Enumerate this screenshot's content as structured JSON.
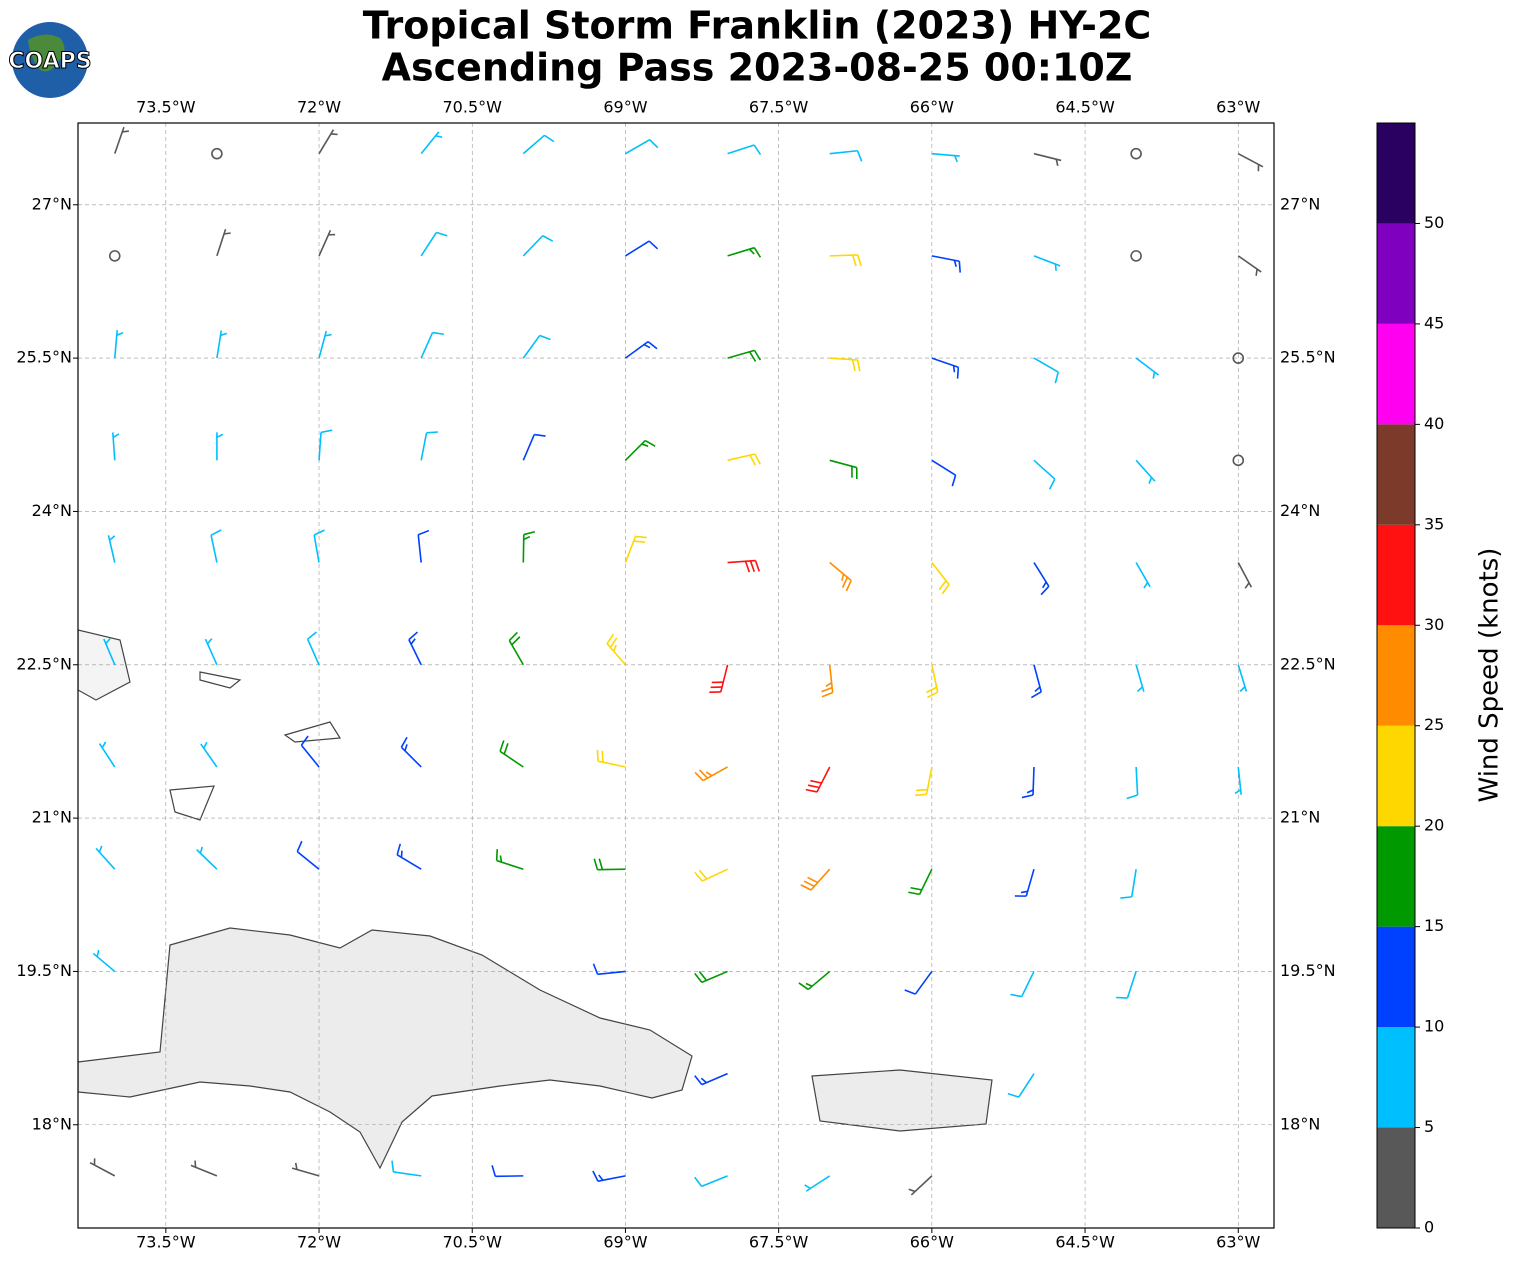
{
  "title": [
    "Tropical Storm Franklin (2023) HY-2C",
    "Ascending Pass 2023-08-25 00:10Z"
  ],
  "logo": "COAPS",
  "map": {
    "lon_range": [
      -74.36,
      -62.65
    ],
    "lat_range": [
      16.99,
      27.8
    ],
    "grid": true,
    "lon_ticks": [
      {
        "value": -73.5,
        "label": "73.5°W"
      },
      {
        "value": -72,
        "label": "72°W"
      },
      {
        "value": -70.5,
        "label": "70.5°W"
      },
      {
        "value": -69,
        "label": "69°W"
      },
      {
        "value": -67.5,
        "label": "67.5°W"
      },
      {
        "value": -66,
        "label": "66°W"
      },
      {
        "value": -64.5,
        "label": "64.5°W"
      },
      {
        "value": -63,
        "label": "63°W"
      }
    ],
    "lat_ticks": [
      {
        "value": 27,
        "label": "27°N"
      },
      {
        "value": 25.5,
        "label": "25.5°N"
      },
      {
        "value": 24,
        "label": "24°N"
      },
      {
        "value": 22.5,
        "label": "22.5°N"
      },
      {
        "value": 21,
        "label": "21°N"
      },
      {
        "value": 19.5,
        "label": "19.5°N"
      },
      {
        "value": 18,
        "label": "18°N"
      }
    ]
  },
  "colorbar": {
    "label": "Wind Speed (knots)",
    "levels": [
      0,
      5,
      10,
      15,
      20,
      25,
      30,
      35,
      40,
      45,
      50,
      55
    ],
    "colors": [
      "#585858",
      "#00bfff",
      "#0040ff",
      "#009900",
      "#ffd700",
      "#ff8c00",
      "#ff1111",
      "#7b3a2a",
      "#ff00f0",
      "#8000c0",
      "#2a0060"
    ],
    "ticks": [
      0,
      5,
      10,
      15,
      20,
      25,
      30,
      35,
      40,
      45,
      50
    ]
  },
  "barbs": [
    {
      "lon": -74,
      "lat": 27.5,
      "speed": 3,
      "dir": 19
    },
    {
      "lon": -73,
      "lat": 27.5,
      "speed": 1,
      "dir": 24
    },
    {
      "lon": -72,
      "lat": 27.5,
      "speed": 3,
      "dir": 31
    },
    {
      "lon": -71,
      "lat": 27.5,
      "speed": 6,
      "dir": 39
    },
    {
      "lon": -70,
      "lat": 27.5,
      "speed": 8,
      "dir": 49
    },
    {
      "lon": -69,
      "lat": 27.5,
      "speed": 8,
      "dir": 60
    },
    {
      "lon": -68,
      "lat": 27.5,
      "speed": 8,
      "dir": 72
    },
    {
      "lon": -67,
      "lat": 27.5,
      "speed": 8,
      "dir": 84
    },
    {
      "lon": -66,
      "lat": 27.5,
      "speed": 7,
      "dir": 95
    },
    {
      "lon": -65,
      "lat": 27.5,
      "speed": 3,
      "dir": 104
    },
    {
      "lon": -64,
      "lat": 27.5,
      "speed": 1,
      "dir": 112
    },
    {
      "lon": -63,
      "lat": 27.5,
      "speed": 3,
      "dir": 118
    },
    {
      "lon": -74,
      "lat": 26.5,
      "speed": 1,
      "dir": 12
    },
    {
      "lon": -73,
      "lat": 26.5,
      "speed": 3,
      "dir": 18
    },
    {
      "lon": -72,
      "lat": 26.5,
      "speed": 4,
      "dir": 24
    },
    {
      "lon": -71,
      "lat": 26.5,
      "speed": 8,
      "dir": 33
    },
    {
      "lon": -70,
      "lat": 26.5,
      "speed": 9,
      "dir": 44
    },
    {
      "lon": -69,
      "lat": 26.5,
      "speed": 12,
      "dir": 58
    },
    {
      "lon": -68,
      "lat": 26.5,
      "speed": 16,
      "dir": 73
    },
    {
      "lon": -67,
      "lat": 26.5,
      "speed": 22,
      "dir": 88
    },
    {
      "lon": -66,
      "lat": 26.5,
      "speed": 13,
      "dir": 101
    },
    {
      "lon": -65,
      "lat": 26.5,
      "speed": 7,
      "dir": 111
    },
    {
      "lon": -64,
      "lat": 26.5,
      "speed": 1,
      "dir": 119
    },
    {
      "lon": -63,
      "lat": 26.5,
      "speed": 3,
      "dir": 125
    },
    {
      "lon": -74,
      "lat": 25.5,
      "speed": 7,
      "dir": 5
    },
    {
      "lon": -73,
      "lat": 25.5,
      "speed": 7,
      "dir": 9
    },
    {
      "lon": -72,
      "lat": 25.5,
      "speed": 7,
      "dir": 15
    },
    {
      "lon": -71,
      "lat": 25.5,
      "speed": 8,
      "dir": 24
    },
    {
      "lon": -70,
      "lat": 25.5,
      "speed": 9,
      "dir": 36
    },
    {
      "lon": -69,
      "lat": 25.5,
      "speed": 13,
      "dir": 54
    },
    {
      "lon": -68,
      "lat": 25.5,
      "speed": 18,
      "dir": 74
    },
    {
      "lon": -67,
      "lat": 25.5,
      "speed": 22,
      "dir": 94
    },
    {
      "lon": -66,
      "lat": 25.5,
      "speed": 13,
      "dir": 109
    },
    {
      "lon": -65,
      "lat": 25.5,
      "speed": 8,
      "dir": 120
    },
    {
      "lon": -64,
      "lat": 25.5,
      "speed": 6,
      "dir": 127
    },
    {
      "lon": -63,
      "lat": 25.5,
      "speed": 1,
      "dir": 133
    },
    {
      "lon": -74,
      "lat": 24.5,
      "speed": 7,
      "dir": 356
    },
    {
      "lon": -73,
      "lat": 24.5,
      "speed": 7,
      "dir": 0
    },
    {
      "lon": -72,
      "lat": 24.5,
      "speed": 8,
      "dir": 4
    },
    {
      "lon": -71,
      "lat": 24.5,
      "speed": 9,
      "dir": 11
    },
    {
      "lon": -70,
      "lat": 24.5,
      "speed": 12,
      "dir": 23
    },
    {
      "lon": -69,
      "lat": 24.5,
      "speed": 16,
      "dir": 45
    },
    {
      "lon": -68,
      "lat": 24.5,
      "speed": 20,
      "dir": 77
    },
    {
      "lon": -67,
      "lat": 24.5,
      "speed": 18,
      "dir": 105
    },
    {
      "lon": -66,
      "lat": 24.5,
      "speed": 12,
      "dir": 122
    },
    {
      "lon": -65,
      "lat": 24.5,
      "speed": 9,
      "dir": 132
    },
    {
      "lon": -64,
      "lat": 24.5,
      "speed": 6,
      "dir": 138
    },
    {
      "lon": -63,
      "lat": 24.5,
      "speed": 1,
      "dir": 142
    },
    {
      "lon": -74,
      "lat": 23.5,
      "speed": 7,
      "dir": 347
    },
    {
      "lon": -73,
      "lat": 23.5,
      "speed": 8,
      "dir": 348
    },
    {
      "lon": -72,
      "lat": 23.5,
      "speed": 9,
      "dir": 350
    },
    {
      "lon": -71,
      "lat": 23.5,
      "speed": 12,
      "dir": 354
    },
    {
      "lon": -70,
      "lat": 23.5,
      "speed": 15,
      "dir": 1
    },
    {
      "lon": -69,
      "lat": 23.5,
      "speed": 20,
      "dir": 21
    },
    {
      "lon": -68,
      "lat": 23.5,
      "speed": 30,
      "dir": 86
    },
    {
      "lon": -67,
      "lat": 23.5,
      "speed": 26,
      "dir": 130
    },
    {
      "lon": -66,
      "lat": 23.5,
      "speed": 20,
      "dir": 142
    },
    {
      "lon": -65,
      "lat": 23.5,
      "speed": 13,
      "dir": 148
    },
    {
      "lon": -64,
      "lat": 23.5,
      "speed": 7,
      "dir": 150
    },
    {
      "lon": -63,
      "lat": 23.5,
      "speed": 4,
      "dir": 152
    },
    {
      "lon": -74,
      "lat": 22.5,
      "speed": 6,
      "dir": 337
    },
    {
      "lon": -73,
      "lat": 22.5,
      "speed": 7,
      "dir": 336
    },
    {
      "lon": -72,
      "lat": 22.5,
      "speed": 9,
      "dir": 336
    },
    {
      "lon": -71,
      "lat": 22.5,
      "speed": 13,
      "dir": 334
    },
    {
      "lon": -70,
      "lat": 22.5,
      "speed": 18,
      "dir": 330
    },
    {
      "lon": -69,
      "lat": 22.5,
      "speed": 24,
      "dir": 319
    },
    {
      "lon": -68,
      "lat": 22.5,
      "speed": 31,
      "dir": 194
    },
    {
      "lon": -67,
      "lat": 22.5,
      "speed": 27,
      "dir": 174
    },
    {
      "lon": -66,
      "lat": 22.5,
      "speed": 22,
      "dir": 168
    },
    {
      "lon": -65,
      "lat": 22.5,
      "speed": 14,
      "dir": 165
    },
    {
      "lon": -64,
      "lat": 22.5,
      "speed": 7,
      "dir": 164
    },
    {
      "lon": -63,
      "lat": 22.5,
      "speed": 5,
      "dir": 163
    },
    {
      "lon": -74,
      "lat": 21.5,
      "speed": 6,
      "dir": 327
    },
    {
      "lon": -73,
      "lat": 21.5,
      "speed": 7,
      "dir": 325
    },
    {
      "lon": -72,
      "lat": 21.5,
      "speed": 10,
      "dir": 321
    },
    {
      "lon": -71,
      "lat": 21.5,
      "speed": 14,
      "dir": 315
    },
    {
      "lon": -70,
      "lat": 21.5,
      "speed": 18,
      "dir": 304
    },
    {
      "lon": -69,
      "lat": 21.5,
      "speed": 22,
      "dir": 282
    },
    {
      "lon": -68,
      "lat": 21.5,
      "speed": 26,
      "dir": 241
    },
    {
      "lon": -67,
      "lat": 21.5,
      "speed": 30,
      "dir": 207
    },
    {
      "lon": -66,
      "lat": 21.5,
      "speed": 20,
      "dir": 191
    },
    {
      "lon": -65,
      "lat": 21.5,
      "speed": 14,
      "dir": 182
    },
    {
      "lon": -64,
      "lat": 21.5,
      "speed": 9,
      "dir": 177
    },
    {
      "lon": -63,
      "lat": 21.5,
      "speed": 6,
      "dir": 174
    },
    {
      "lon": -74,
      "lat": 20.5,
      "speed": 6,
      "dir": 318
    },
    {
      "lon": -73,
      "lat": 20.5,
      "speed": 7,
      "dir": 314
    },
    {
      "lon": -72,
      "lat": 20.5,
      "speed": 10,
      "dir": 309
    },
    {
      "lon": -71,
      "lat": 20.5,
      "speed": 13,
      "dir": 301
    },
    {
      "lon": -70,
      "lat": 20.5,
      "speed": 16,
      "dir": 288
    },
    {
      "lon": -69,
      "lat": 20.5,
      "speed": 18,
      "dir": 269
    },
    {
      "lon": -68,
      "lat": 20.5,
      "speed": 22,
      "dir": 245
    },
    {
      "lon": -67,
      "lat": 20.5,
      "speed": 28,
      "dir": 222
    },
    {
      "lon": -66,
      "lat": 20.5,
      "speed": 18,
      "dir": 206
    },
    {
      "lon": -65,
      "lat": 20.5,
      "speed": 13,
      "dir": 196
    },
    {
      "lon": -64,
      "lat": 20.5,
      "speed": 9,
      "dir": 189
    },
    {
      "lon": -74,
      "lat": 19.5,
      "speed": 6,
      "dir": 310
    },
    {
      "lon": -69,
      "lat": 19.5,
      "speed": 12,
      "dir": 264
    },
    {
      "lon": -68,
      "lat": 19.5,
      "speed": 18,
      "dir": 247
    },
    {
      "lon": -67,
      "lat": 19.5,
      "speed": 16,
      "dir": 230
    },
    {
      "lon": -66,
      "lat": 19.5,
      "speed": 12,
      "dir": 216
    },
    {
      "lon": -65,
      "lat": 19.5,
      "speed": 9,
      "dir": 206
    },
    {
      "lon": -64,
      "lat": 19.5,
      "speed": 8,
      "dir": 198
    },
    {
      "lon": -68,
      "lat": 18.5,
      "speed": 14,
      "dir": 247
    },
    {
      "lon": -65,
      "lat": 18.5,
      "speed": 8,
      "dir": 213
    },
    {
      "lon": -74,
      "lat": 17.5,
      "speed": 3,
      "dir": 298
    },
    {
      "lon": -73,
      "lat": 17.5,
      "speed": 3,
      "dir": 292
    },
    {
      "lon": -72,
      "lat": 17.5,
      "speed": 4,
      "dir": 286
    },
    {
      "lon": -71,
      "lat": 17.5,
      "speed": 8,
      "dir": 278
    },
    {
      "lon": -70,
      "lat": 17.5,
      "speed": 12,
      "dir": 269
    },
    {
      "lon": -69,
      "lat": 17.5,
      "speed": 14,
      "dir": 259
    },
    {
      "lon": -68,
      "lat": 17.5,
      "speed": 9,
      "dir": 248
    },
    {
      "lon": -67,
      "lat": 17.5,
      "speed": 6,
      "dir": 237
    },
    {
      "lon": -66,
      "lat": 17.5,
      "speed": 3,
      "dir": 227
    }
  ]
}
